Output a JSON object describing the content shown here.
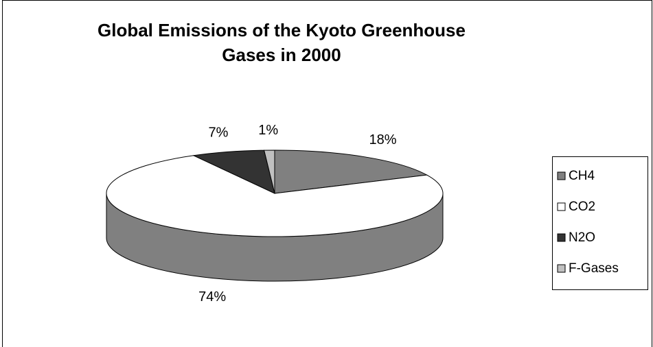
{
  "chart_data": {
    "type": "pie3d",
    "title": "Global Emissions of the Kyoto Greenhouse Gases in 2000",
    "categories": [
      "CH4",
      "CO2",
      "N2O",
      "F-Gases"
    ],
    "values": [
      18,
      74,
      7,
      1
    ],
    "value_labels": [
      "18%",
      "74%",
      "7%",
      "1%"
    ],
    "colors": [
      "#808080",
      "#ffffff",
      "#333333",
      "#c0c0c0"
    ],
    "legend": "right"
  }
}
